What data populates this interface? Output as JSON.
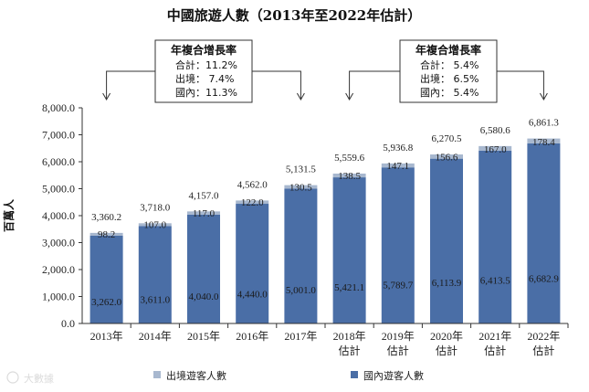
{
  "chart_data": {
    "type": "bar",
    "stacked": true,
    "title": "中國旅遊人數（2013年至2022年估計）",
    "ylabel": "百萬人",
    "ylim": [
      0,
      8000
    ],
    "y_ticks": [
      "0.0",
      "1,000.0",
      "2,000.0",
      "3,000.0",
      "4,000.0",
      "5,000.0",
      "6,000.0",
      "7,000.0",
      "8,000.0"
    ],
    "y_tick_values": [
      0,
      1000,
      2000,
      3000,
      4000,
      5000,
      6000,
      7000,
      8000
    ],
    "categories": [
      [
        "2013年"
      ],
      [
        "2014年"
      ],
      [
        "2015年"
      ],
      [
        "2016年"
      ],
      [
        "2017年"
      ],
      [
        "2018年",
        "估計"
      ],
      [
        "2019年",
        "估計"
      ],
      [
        "2020年",
        "估計"
      ],
      [
        "2021年",
        "估計"
      ],
      [
        "2022年",
        "估計"
      ]
    ],
    "series": [
      {
        "name": "國內遊客人數",
        "color": "#4a6ea6",
        "values": [
          3262.0,
          3611.0,
          4040.0,
          4440.0,
          5001.0,
          5421.1,
          5789.7,
          6113.9,
          6413.5,
          6682.9
        ],
        "labels": [
          "3,262.0",
          "3,611.0",
          "4,040.0",
          "4,440.0",
          "5,001.0",
          "5,421.1",
          "5,789.7",
          "6,113.9",
          "6,413.5",
          "6,682.9"
        ]
      },
      {
        "name": "出境遊客人數",
        "color": "#a8b8cf",
        "values": [
          98.2,
          107.0,
          117.0,
          122.0,
          130.5,
          138.5,
          147.1,
          156.6,
          167.0,
          178.4
        ],
        "labels": [
          "98.2",
          "107.0",
          "117.0",
          "122.0",
          "130.5",
          "138.5",
          "147.1",
          "156.6",
          "167.0",
          "178.4"
        ]
      }
    ],
    "totals": [
      3360.2,
      3718.0,
      4157.0,
      4562.0,
      5131.5,
      5559.6,
      5936.8,
      6270.5,
      6580.6,
      6861.3
    ],
    "total_labels": [
      "3,360.2",
      "3,718.0",
      "4,157.0",
      "4,562.0",
      "5,131.5",
      "5,559.6",
      "5,936.8",
      "6,270.5",
      "6,580.6",
      "6,861.3"
    ],
    "annotations": [
      {
        "title": "年複合增長率",
        "rows": [
          "合計：11.2%",
          "出境：  7.4%",
          "國內：11.3%"
        ]
      },
      {
        "title": "年複合增長率",
        "rows": [
          "合計：  5.4%",
          "出境：  6.5%",
          "國內：  5.4%"
        ]
      }
    ],
    "legend": {
      "position": "bottom",
      "entries": [
        "出境遊客人數",
        "國內遊客人數"
      ]
    },
    "grid": false
  },
  "watermark": "大數據",
  "colors": {
    "domestic": "#4a6ea6",
    "outbound": "#a8b8cf",
    "axis": "#333333"
  }
}
